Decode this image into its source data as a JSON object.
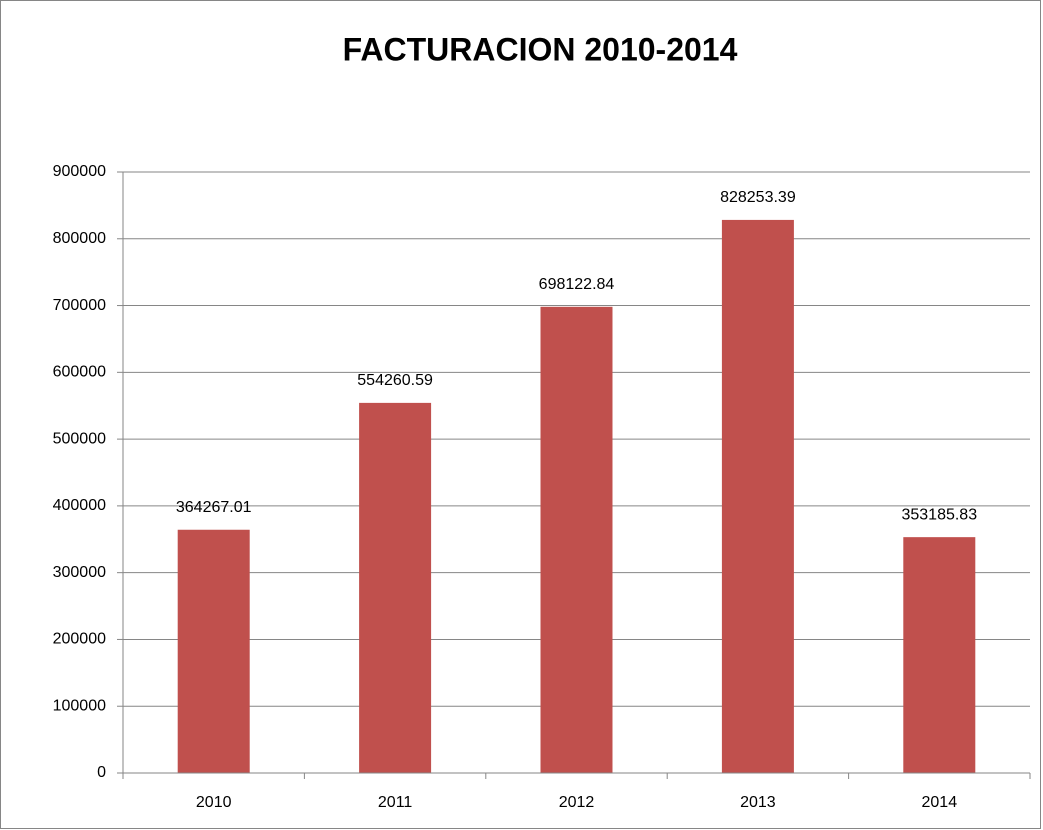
{
  "chart_data": {
    "type": "bar",
    "title": "FACTURACION 2010-2014",
    "categories": [
      "2010",
      "2011",
      "2012",
      "2013",
      "2014"
    ],
    "values": [
      364267.01,
      554260.59,
      698122.84,
      828253.39,
      353185.83
    ],
    "color": "#c0504d",
    "ylim": [
      0,
      900000
    ],
    "yticks": [
      0,
      100000,
      200000,
      300000,
      400000,
      500000,
      600000,
      700000,
      800000,
      900000
    ],
    "grid": true
  }
}
